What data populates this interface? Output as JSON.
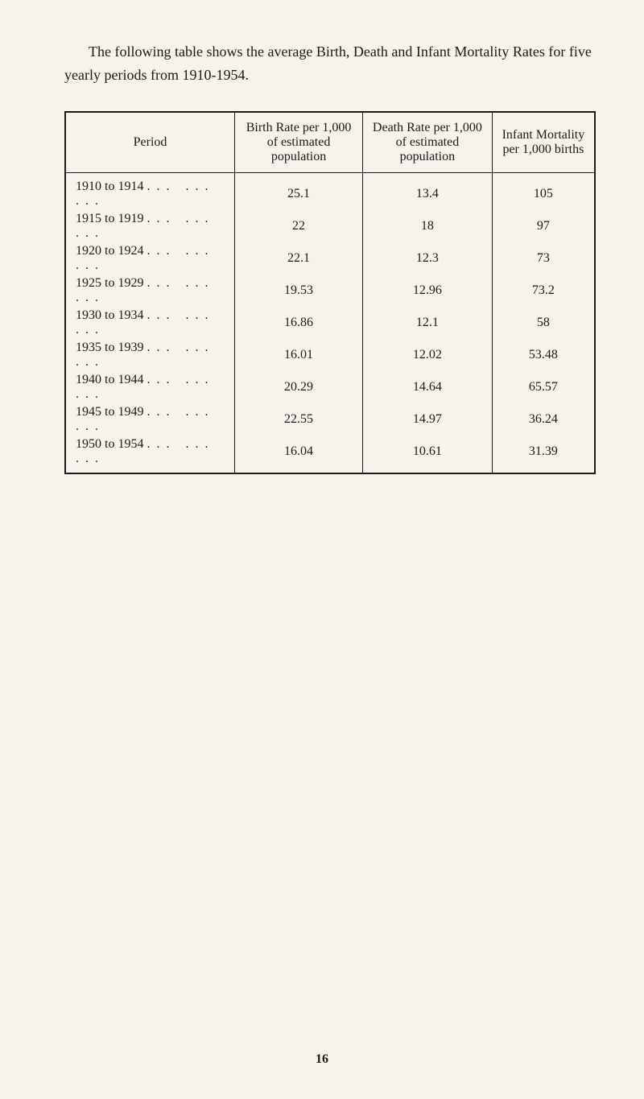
{
  "intro": "The following table shows the average Birth, Death and Infant Mortality Rates for five yearly periods from 1910-1954.",
  "table": {
    "columns": [
      "Period",
      "Birth Rate per 1,000 of estimated population",
      "Death Rate per 1,000 of estimated population",
      "Infant Mortality per 1,000 births"
    ],
    "rows": [
      {
        "period": "1910 to 1914",
        "birth": "25.1",
        "death": "13.4",
        "infant": "105"
      },
      {
        "period": "1915 to 1919",
        "birth": "22",
        "death": "18",
        "infant": "97"
      },
      {
        "period": "1920 to 1924",
        "birth": "22.1",
        "death": "12.3",
        "infant": "73"
      },
      {
        "period": "1925 to 1929",
        "birth": "19.53",
        "death": "12.96",
        "infant": "73.2"
      },
      {
        "period": "1930 to 1934",
        "birth": "16.86",
        "death": "12.1",
        "infant": "58"
      },
      {
        "period": "1935 to 1939",
        "birth": "16.01",
        "death": "12.02",
        "infant": "53.48"
      },
      {
        "period": "1940 to 1944",
        "birth": "20.29",
        "death": "14.64",
        "infant": "65.57"
      },
      {
        "period": "1945 to 1949",
        "birth": "22.55",
        "death": "14.97",
        "infant": "36.24"
      },
      {
        "period": "1950 to 1954",
        "birth": "16.04",
        "death": "10.61",
        "infant": "31.39"
      }
    ],
    "ellipsis": "...   ...   ...",
    "colors": {
      "background": "#f5f3ea",
      "text": "#1a1a1a",
      "border": "#1a1a1a"
    },
    "font_family": "Georgia, serif",
    "intro_fontsize": 18,
    "cell_fontsize": 16
  },
  "page_number": "16"
}
